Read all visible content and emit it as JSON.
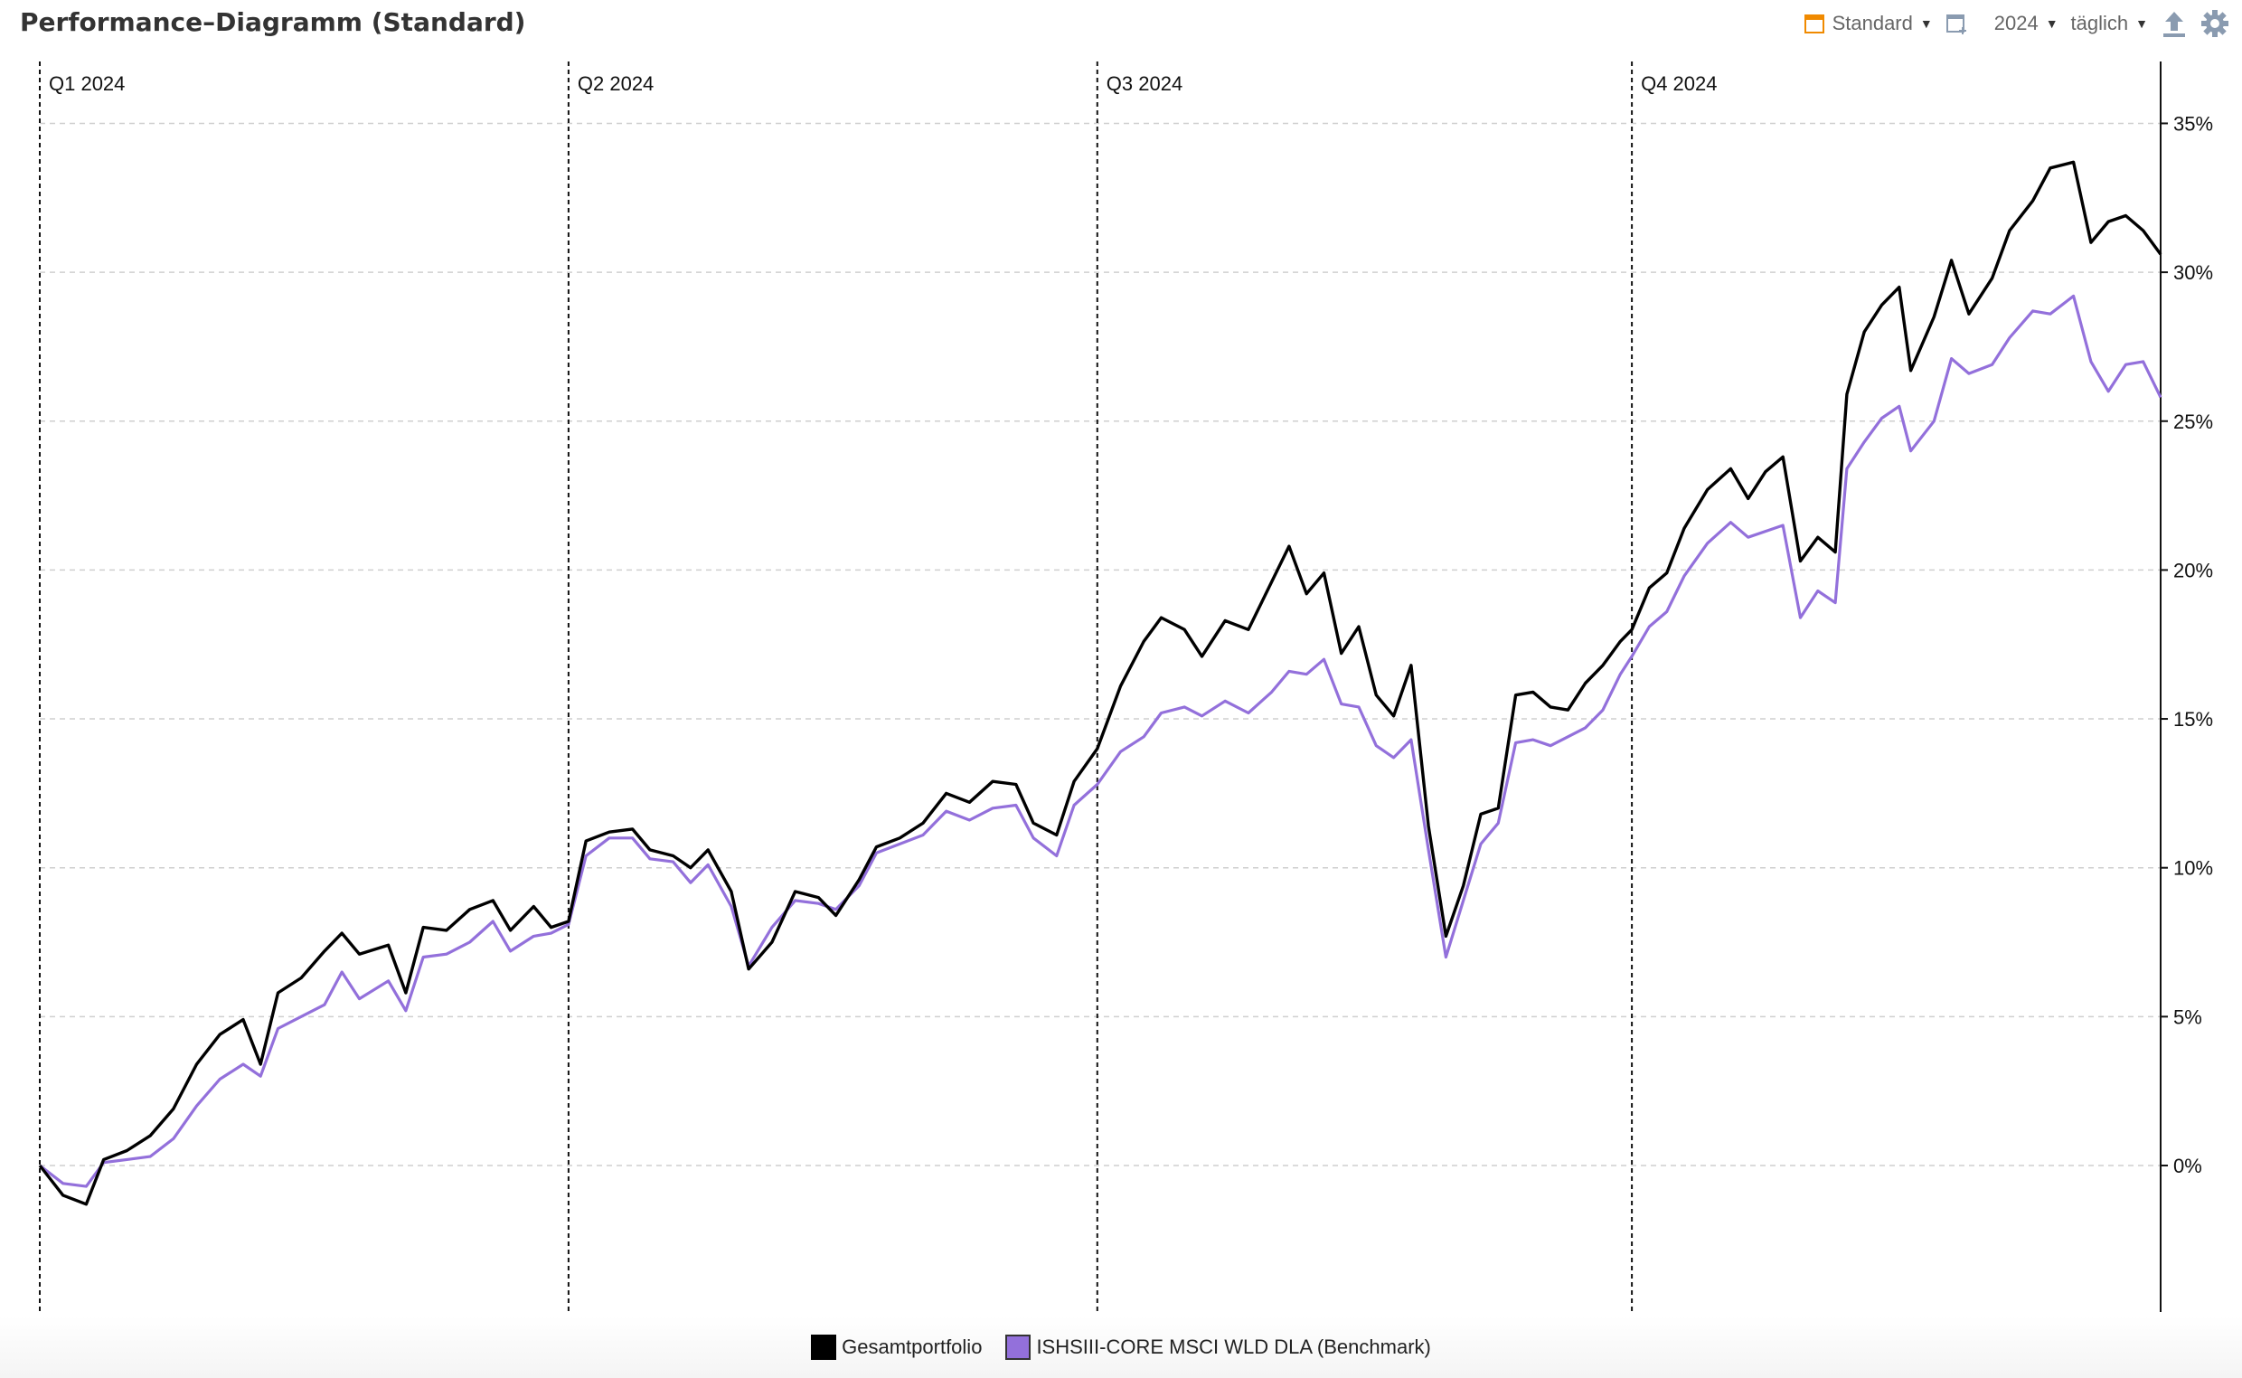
{
  "header": {
    "title": "Performance–Diagramm (Standard)",
    "view_label": "Standard",
    "year_label": "2024",
    "interval_label": "täglich"
  },
  "icons": {
    "view": "calendar-icon",
    "compare": "window-add-icon",
    "export": "upload-icon",
    "settings": "gear-icon"
  },
  "colors": {
    "portfolio": "#000000",
    "benchmark": "#9370db",
    "accent": "#f08a00"
  },
  "chart_data": {
    "type": "line",
    "y_unit": "%",
    "ylim": [
      -4,
      37
    ],
    "yticks": [
      0,
      5,
      10,
      15,
      20,
      25,
      30,
      35
    ],
    "ytick_labels": [
      "0%",
      "5%",
      "10%",
      "15%",
      "20%",
      "25%",
      "30%",
      "35%"
    ],
    "y_axis_position": "right",
    "grid": "horizontal dashed",
    "xlim": [
      "2024-01-01",
      "2024-12-31"
    ],
    "quarter_markers": [
      {
        "label": "Q1 2024",
        "date": "2024-01-01"
      },
      {
        "label": "Q2 2024",
        "date": "2024-04-01"
      },
      {
        "label": "Q3 2024",
        "date": "2024-07-01"
      },
      {
        "label": "Q4 2024",
        "date": "2024-10-01"
      }
    ],
    "legend_position": "bottom-center",
    "series": [
      {
        "name": "Gesamtportfolio",
        "color": "#000000",
        "points": [
          [
            "2024-01-01",
            0.0
          ],
          [
            "2024-01-05",
            -1.0
          ],
          [
            "2024-01-09",
            -1.3
          ],
          [
            "2024-01-12",
            0.2
          ],
          [
            "2024-01-16",
            0.5
          ],
          [
            "2024-01-20",
            1.0
          ],
          [
            "2024-01-24",
            1.9
          ],
          [
            "2024-01-28",
            3.4
          ],
          [
            "2024-02-01",
            4.4
          ],
          [
            "2024-02-05",
            4.9
          ],
          [
            "2024-02-08",
            3.4
          ],
          [
            "2024-02-11",
            5.8
          ],
          [
            "2024-02-15",
            6.3
          ],
          [
            "2024-02-19",
            7.2
          ],
          [
            "2024-02-22",
            7.8
          ],
          [
            "2024-02-25",
            7.1
          ],
          [
            "2024-03-01",
            7.4
          ],
          [
            "2024-03-04",
            5.8
          ],
          [
            "2024-03-07",
            8.0
          ],
          [
            "2024-03-11",
            7.9
          ],
          [
            "2024-03-15",
            8.6
          ],
          [
            "2024-03-19",
            8.9
          ],
          [
            "2024-03-22",
            7.9
          ],
          [
            "2024-03-26",
            8.7
          ],
          [
            "2024-03-29",
            8.0
          ],
          [
            "2024-04-01",
            8.2
          ],
          [
            "2024-04-04",
            10.9
          ],
          [
            "2024-04-08",
            11.2
          ],
          [
            "2024-04-12",
            11.3
          ],
          [
            "2024-04-15",
            10.6
          ],
          [
            "2024-04-19",
            10.4
          ],
          [
            "2024-04-22",
            10.0
          ],
          [
            "2024-04-25",
            10.6
          ],
          [
            "2024-04-29",
            9.2
          ],
          [
            "2024-05-02",
            6.6
          ],
          [
            "2024-05-06",
            7.5
          ],
          [
            "2024-05-10",
            9.2
          ],
          [
            "2024-05-14",
            9.0
          ],
          [
            "2024-05-17",
            8.4
          ],
          [
            "2024-05-21",
            9.6
          ],
          [
            "2024-05-24",
            10.7
          ],
          [
            "2024-05-28",
            11.0
          ],
          [
            "2024-06-01",
            11.5
          ],
          [
            "2024-06-05",
            12.5
          ],
          [
            "2024-06-09",
            12.2
          ],
          [
            "2024-06-13",
            12.9
          ],
          [
            "2024-06-17",
            12.8
          ],
          [
            "2024-06-20",
            11.5
          ],
          [
            "2024-06-24",
            11.1
          ],
          [
            "2024-06-27",
            12.9
          ],
          [
            "2024-07-01",
            14.0
          ],
          [
            "2024-07-05",
            16.1
          ],
          [
            "2024-07-09",
            17.6
          ],
          [
            "2024-07-12",
            18.4
          ],
          [
            "2024-07-16",
            18.0
          ],
          [
            "2024-07-19",
            17.1
          ],
          [
            "2024-07-23",
            18.3
          ],
          [
            "2024-07-27",
            18.0
          ],
          [
            "2024-07-31",
            19.6
          ],
          [
            "2024-08-03",
            20.8
          ],
          [
            "2024-08-06",
            19.2
          ],
          [
            "2024-08-09",
            19.9
          ],
          [
            "2024-08-12",
            17.2
          ],
          [
            "2024-08-15",
            18.1
          ],
          [
            "2024-08-18",
            15.8
          ],
          [
            "2024-08-21",
            15.1
          ],
          [
            "2024-08-24",
            16.8
          ],
          [
            "2024-08-27",
            11.4
          ],
          [
            "2024-08-30",
            7.7
          ],
          [
            "2024-09-02",
            9.4
          ],
          [
            "2024-09-05",
            11.8
          ],
          [
            "2024-09-08",
            12.0
          ],
          [
            "2024-09-11",
            15.8
          ],
          [
            "2024-09-14",
            15.9
          ],
          [
            "2024-09-17",
            15.4
          ],
          [
            "2024-09-20",
            15.3
          ],
          [
            "2024-09-23",
            16.2
          ],
          [
            "2024-09-26",
            16.8
          ],
          [
            "2024-09-29",
            17.6
          ],
          [
            "2024-10-01",
            18.0
          ],
          [
            "2024-10-04",
            19.4
          ],
          [
            "2024-10-07",
            19.9
          ],
          [
            "2024-10-10",
            21.4
          ],
          [
            "2024-10-14",
            22.7
          ],
          [
            "2024-10-18",
            23.4
          ],
          [
            "2024-10-21",
            22.4
          ],
          [
            "2024-10-24",
            23.3
          ],
          [
            "2024-10-27",
            23.8
          ],
          [
            "2024-10-30",
            20.3
          ],
          [
            "2024-11-02",
            21.1
          ],
          [
            "2024-11-05",
            20.6
          ],
          [
            "2024-11-07",
            25.9
          ],
          [
            "2024-11-10",
            28.0
          ],
          [
            "2024-11-13",
            28.9
          ],
          [
            "2024-11-16",
            29.5
          ],
          [
            "2024-11-18",
            26.7
          ],
          [
            "2024-11-22",
            28.5
          ],
          [
            "2024-11-25",
            30.4
          ],
          [
            "2024-11-28",
            28.6
          ],
          [
            "2024-12-02",
            29.8
          ],
          [
            "2024-12-05",
            31.4
          ],
          [
            "2024-12-09",
            32.4
          ],
          [
            "2024-12-12",
            33.5
          ],
          [
            "2024-12-16",
            33.7
          ],
          [
            "2024-12-19",
            31.0
          ],
          [
            "2024-12-22",
            31.7
          ],
          [
            "2024-12-25",
            31.9
          ],
          [
            "2024-12-28",
            31.4
          ],
          [
            "2024-12-31",
            30.6
          ]
        ]
      },
      {
        "name": "ISHSIII-CORE MSCI WLD DLA (Benchmark)",
        "color": "#9370db",
        "points": [
          [
            "2024-01-01",
            0.0
          ],
          [
            "2024-01-05",
            -0.6
          ],
          [
            "2024-01-09",
            -0.7
          ],
          [
            "2024-01-12",
            0.1
          ],
          [
            "2024-01-16",
            0.2
          ],
          [
            "2024-01-20",
            0.3
          ],
          [
            "2024-01-24",
            0.9
          ],
          [
            "2024-01-28",
            2.0
          ],
          [
            "2024-02-01",
            2.9
          ],
          [
            "2024-02-05",
            3.4
          ],
          [
            "2024-02-08",
            3.0
          ],
          [
            "2024-02-11",
            4.6
          ],
          [
            "2024-02-15",
            5.0
          ],
          [
            "2024-02-19",
            5.4
          ],
          [
            "2024-02-22",
            6.5
          ],
          [
            "2024-02-25",
            5.6
          ],
          [
            "2024-03-01",
            6.2
          ],
          [
            "2024-03-04",
            5.2
          ],
          [
            "2024-03-07",
            7.0
          ],
          [
            "2024-03-11",
            7.1
          ],
          [
            "2024-03-15",
            7.5
          ],
          [
            "2024-03-19",
            8.2
          ],
          [
            "2024-03-22",
            7.2
          ],
          [
            "2024-03-26",
            7.7
          ],
          [
            "2024-03-29",
            7.8
          ],
          [
            "2024-04-01",
            8.1
          ],
          [
            "2024-04-04",
            10.4
          ],
          [
            "2024-04-08",
            11.0
          ],
          [
            "2024-04-12",
            11.0
          ],
          [
            "2024-04-15",
            10.3
          ],
          [
            "2024-04-19",
            10.2
          ],
          [
            "2024-04-22",
            9.5
          ],
          [
            "2024-04-25",
            10.1
          ],
          [
            "2024-04-29",
            8.7
          ],
          [
            "2024-05-02",
            6.7
          ],
          [
            "2024-05-06",
            8.0
          ],
          [
            "2024-05-10",
            8.9
          ],
          [
            "2024-05-14",
            8.8
          ],
          [
            "2024-05-17",
            8.6
          ],
          [
            "2024-05-21",
            9.4
          ],
          [
            "2024-05-24",
            10.5
          ],
          [
            "2024-05-28",
            10.8
          ],
          [
            "2024-06-01",
            11.1
          ],
          [
            "2024-06-05",
            11.9
          ],
          [
            "2024-06-09",
            11.6
          ],
          [
            "2024-06-13",
            12.0
          ],
          [
            "2024-06-17",
            12.1
          ],
          [
            "2024-06-20",
            11.0
          ],
          [
            "2024-06-24",
            10.4
          ],
          [
            "2024-06-27",
            12.1
          ],
          [
            "2024-07-01",
            12.8
          ],
          [
            "2024-07-05",
            13.9
          ],
          [
            "2024-07-09",
            14.4
          ],
          [
            "2024-07-12",
            15.2
          ],
          [
            "2024-07-16",
            15.4
          ],
          [
            "2024-07-19",
            15.1
          ],
          [
            "2024-07-23",
            15.6
          ],
          [
            "2024-07-27",
            15.2
          ],
          [
            "2024-07-31",
            15.9
          ],
          [
            "2024-08-03",
            16.6
          ],
          [
            "2024-08-06",
            16.5
          ],
          [
            "2024-08-09",
            17.0
          ],
          [
            "2024-08-12",
            15.5
          ],
          [
            "2024-08-15",
            15.4
          ],
          [
            "2024-08-18",
            14.1
          ],
          [
            "2024-08-21",
            13.7
          ],
          [
            "2024-08-24",
            14.3
          ],
          [
            "2024-08-27",
            10.6
          ],
          [
            "2024-08-30",
            7.0
          ],
          [
            "2024-09-02",
            8.9
          ],
          [
            "2024-09-05",
            10.8
          ],
          [
            "2024-09-08",
            11.5
          ],
          [
            "2024-09-11",
            14.2
          ],
          [
            "2024-09-14",
            14.3
          ],
          [
            "2024-09-17",
            14.1
          ],
          [
            "2024-09-20",
            14.4
          ],
          [
            "2024-09-23",
            14.7
          ],
          [
            "2024-09-26",
            15.3
          ],
          [
            "2024-09-29",
            16.5
          ],
          [
            "2024-10-01",
            17.1
          ],
          [
            "2024-10-04",
            18.1
          ],
          [
            "2024-10-07",
            18.6
          ],
          [
            "2024-10-10",
            19.8
          ],
          [
            "2024-10-14",
            20.9
          ],
          [
            "2024-10-18",
            21.6
          ],
          [
            "2024-10-21",
            21.1
          ],
          [
            "2024-10-24",
            21.3
          ],
          [
            "2024-10-27",
            21.5
          ],
          [
            "2024-10-30",
            18.4
          ],
          [
            "2024-11-02",
            19.3
          ],
          [
            "2024-11-05",
            18.9
          ],
          [
            "2024-11-07",
            23.4
          ],
          [
            "2024-11-10",
            24.3
          ],
          [
            "2024-11-13",
            25.1
          ],
          [
            "2024-11-16",
            25.5
          ],
          [
            "2024-11-18",
            24.0
          ],
          [
            "2024-11-22",
            25.0
          ],
          [
            "2024-11-25",
            27.1
          ],
          [
            "2024-11-28",
            26.6
          ],
          [
            "2024-12-02",
            26.9
          ],
          [
            "2024-12-05",
            27.8
          ],
          [
            "2024-12-09",
            28.7
          ],
          [
            "2024-12-12",
            28.6
          ],
          [
            "2024-12-16",
            29.2
          ],
          [
            "2024-12-19",
            27.0
          ],
          [
            "2024-12-22",
            26.0
          ],
          [
            "2024-12-25",
            26.9
          ],
          [
            "2024-12-28",
            27.0
          ],
          [
            "2024-12-31",
            25.8
          ]
        ]
      }
    ]
  }
}
